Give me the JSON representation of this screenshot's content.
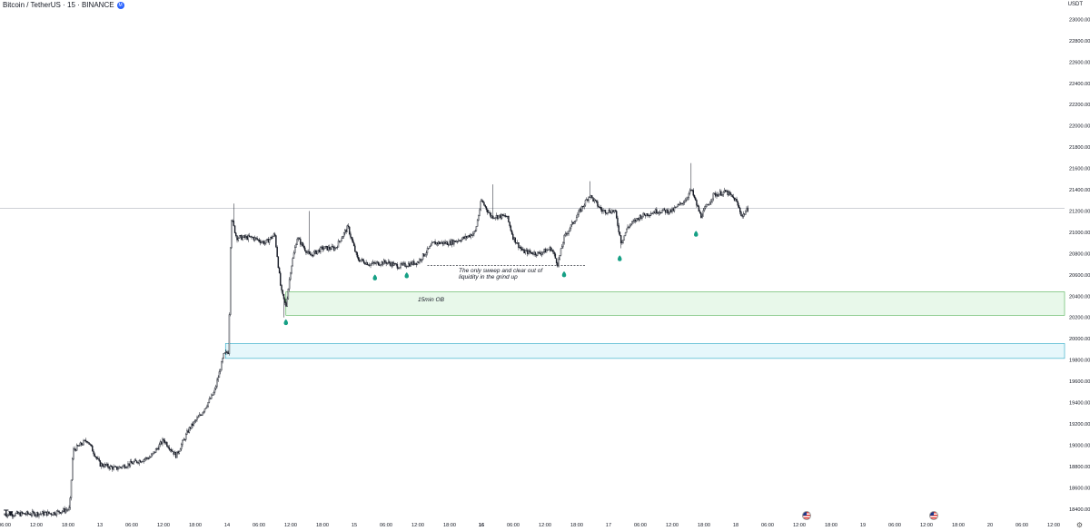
{
  "header": {
    "symbol": "Bitcoin / TetherUS · 15 · BINANCE",
    "badge": "M",
    "currency": "USDT"
  },
  "annotations": {
    "sweep_text_line1": "The only sweep and clear out of",
    "sweep_text_line2": "liquidity in the grind up",
    "ob_label": "15min OB"
  },
  "colors": {
    "candle": "#131722",
    "ob_fill": "#e8f8ea",
    "ob_border": "#4caf50",
    "fvg_fill": "#e6f7fb",
    "fvg_border": "#26a6c4",
    "marker": "#16a085",
    "hline": "#b2b5be"
  },
  "icons": {
    "logo": "tradingview-logo-icon",
    "flag": "us-flag-icon",
    "settings": "gear-icon"
  },
  "chart_data": {
    "type": "candlestick",
    "price_axis": {
      "min": 18400,
      "max": 23000,
      "ticks": [
        "23000.00",
        "22800.00",
        "22600.00",
        "22400.00",
        "22200.00",
        "22000.00",
        "21800.00",
        "21600.00",
        "21400.00",
        "21200.00",
        "21000.00",
        "20800.00",
        "20600.00",
        "20400.00",
        "20200.00",
        "20000.00",
        "19800.00",
        "19600.00",
        "19400.00",
        "19200.00",
        "19000.00",
        "18800.00",
        "18600.00",
        "18400.00"
      ]
    },
    "time_axis": {
      "labels": [
        "06:00",
        "12:00",
        "18:00",
        "13",
        "06:00",
        "12:00",
        "18:00",
        "14",
        "06:00",
        "12:00",
        "18:00",
        "15",
        "06:00",
        "12:00",
        "18:00",
        "16",
        "06:00",
        "12:00",
        "18:00",
        "17",
        "06:00",
        "12:00",
        "18:00",
        "18",
        "06:00",
        "12:00",
        "18:00",
        "19",
        "06:00",
        "12:00",
        "18:00",
        "20",
        "06:00",
        "12:00"
      ]
    },
    "price_path": [
      {
        "t": 0,
        "p": 18350
      },
      {
        "t": 1.5,
        "p": 18360
      },
      {
        "t": 2.05,
        "p": 18400
      },
      {
        "t": 2.15,
        "p": 18950
      },
      {
        "t": 2.6,
        "p": 19050
      },
      {
        "t": 3.0,
        "p": 18820
      },
      {
        "t": 3.5,
        "p": 18780
      },
      {
        "t": 4.0,
        "p": 18830
      },
      {
        "t": 4.6,
        "p": 18890
      },
      {
        "t": 5.0,
        "p": 19050
      },
      {
        "t": 5.4,
        "p": 18900
      },
      {
        "t": 5.8,
        "p": 19150
      },
      {
        "t": 6.2,
        "p": 19300
      },
      {
        "t": 6.6,
        "p": 19500
      },
      {
        "t": 6.9,
        "p": 19850
      },
      {
        "t": 7.05,
        "p": 19880
      },
      {
        "t": 7.12,
        "p": 21150
      },
      {
        "t": 7.3,
        "p": 20950
      },
      {
        "t": 7.8,
        "p": 20950
      },
      {
        "t": 8.2,
        "p": 20900
      },
      {
        "t": 8.5,
        "p": 20980
      },
      {
        "t": 8.7,
        "p": 20450
      },
      {
        "t": 8.85,
        "p": 20300
      },
      {
        "t": 9.0,
        "p": 20650
      },
      {
        "t": 9.2,
        "p": 20950
      },
      {
        "t": 9.6,
        "p": 20780
      },
      {
        "t": 10.0,
        "p": 20850
      },
      {
        "t": 10.4,
        "p": 20850
      },
      {
        "t": 10.8,
        "p": 21050
      },
      {
        "t": 11.1,
        "p": 20750
      },
      {
        "t": 11.5,
        "p": 20700
      },
      {
        "t": 12.0,
        "p": 20720
      },
      {
        "t": 12.4,
        "p": 20680
      },
      {
        "t": 13.0,
        "p": 20720
      },
      {
        "t": 13.5,
        "p": 20900
      },
      {
        "t": 14.0,
        "p": 20900
      },
      {
        "t": 14.5,
        "p": 20950
      },
      {
        "t": 14.8,
        "p": 21000
      },
      {
        "t": 15.0,
        "p": 21300
      },
      {
        "t": 15.3,
        "p": 21150
      },
      {
        "t": 15.8,
        "p": 21150
      },
      {
        "t": 16.0,
        "p": 20950
      },
      {
        "t": 16.3,
        "p": 20820
      },
      {
        "t": 16.8,
        "p": 20800
      },
      {
        "t": 17.2,
        "p": 20850
      },
      {
        "t": 17.4,
        "p": 20700
      },
      {
        "t": 17.6,
        "p": 20950
      },
      {
        "t": 18.0,
        "p": 21150
      },
      {
        "t": 18.4,
        "p": 21350
      },
      {
        "t": 18.8,
        "p": 21200
      },
      {
        "t": 19.2,
        "p": 21200
      },
      {
        "t": 19.4,
        "p": 20900
      },
      {
        "t": 19.6,
        "p": 21050
      },
      {
        "t": 20.0,
        "p": 21150
      },
      {
        "t": 20.5,
        "p": 21200
      },
      {
        "t": 21.0,
        "p": 21200
      },
      {
        "t": 21.4,
        "p": 21300
      },
      {
        "t": 21.6,
        "p": 21400
      },
      {
        "t": 21.9,
        "p": 21150
      },
      {
        "t": 22.3,
        "p": 21350
      },
      {
        "t": 22.7,
        "p": 21380
      },
      {
        "t": 23.0,
        "p": 21300
      },
      {
        "t": 23.2,
        "p": 21150
      },
      {
        "t": 23.4,
        "p": 21230
      }
    ],
    "spikes": [
      {
        "t": 7.2,
        "high": 21270
      },
      {
        "t": 8.8,
        "low": 20200
      },
      {
        "t": 9.6,
        "high": 21200
      },
      {
        "t": 15.35,
        "high": 21450
      },
      {
        "t": 18.4,
        "high": 21480
      },
      {
        "t": 21.6,
        "high": 21650
      },
      {
        "t": 19.4,
        "low": 20850
      }
    ],
    "horizontal_line": 21225,
    "zones": [
      {
        "name": "15min OB",
        "from": 20220,
        "to": 20440,
        "start_t": 8.85
      },
      {
        "name": "",
        "from": 19815,
        "to": 19955,
        "start_t": 6.95
      }
    ],
    "sweep_level": {
      "price": 20690,
      "from_t": 13.3,
      "to_t": 18.3
    },
    "markers": [
      {
        "t": 8.85,
        "p": 20150
      },
      {
        "t": 11.65,
        "p": 20570
      },
      {
        "t": 12.65,
        "p": 20590
      },
      {
        "t": 17.6,
        "p": 20600
      },
      {
        "t": 19.35,
        "p": 20750
      },
      {
        "t": 21.75,
        "p": 20980
      }
    ],
    "event_flags": [
      {
        "t": 25.2
      },
      {
        "t": 29.2
      }
    ]
  }
}
